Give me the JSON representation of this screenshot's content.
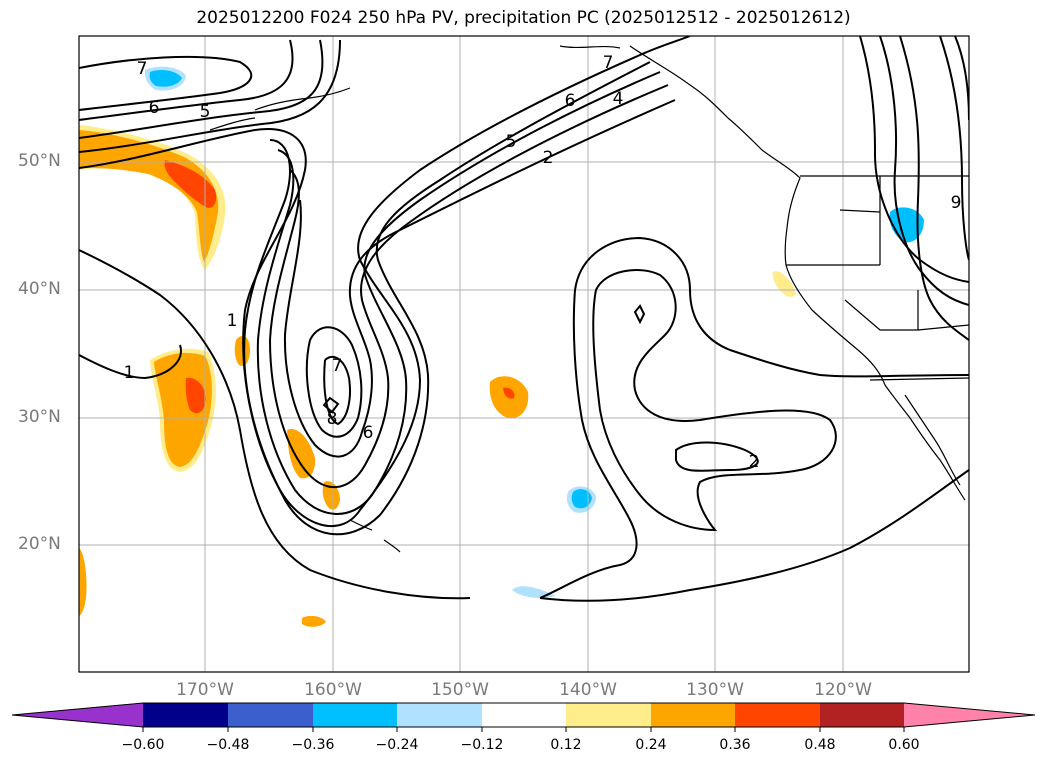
{
  "title": "2025012200 F024 250 hPa PV, precipitation PC (2025012512 - 2025012612)",
  "lat_labels": [
    "50°N",
    "40°N",
    "30°N",
    "20°N"
  ],
  "lon_labels": [
    "170°W",
    "160°W",
    "150°W",
    "140°W",
    "130°W",
    "120°W"
  ],
  "contour_labels": [
    "7",
    "6",
    "5",
    "7",
    "6",
    "4",
    "5",
    "2",
    "1",
    "1",
    "7",
    "8",
    "6",
    "2",
    "9"
  ],
  "colorbar": {
    "tick_labels": [
      "−0.60",
      "−0.48",
      "−0.36",
      "−0.24",
      "−0.12",
      "0.12",
      "0.24",
      "0.36",
      "0.48",
      "0.60"
    ],
    "colors": [
      "#9932cc",
      "#00008b",
      "#3a5fcd",
      "#00bfff",
      "#b0e2ff",
      "#ffffff",
      "#ffec8b",
      "#ffa500",
      "#ff4500",
      "#b22222",
      "#ff82ab"
    ]
  }
}
